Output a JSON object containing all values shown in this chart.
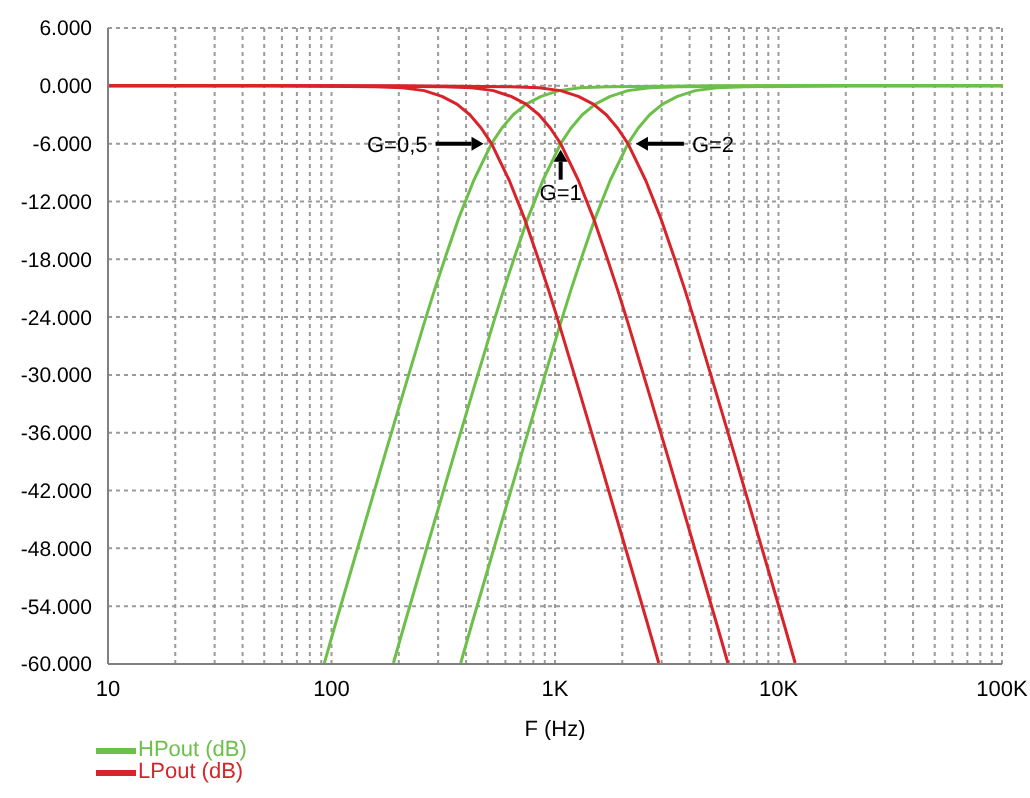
{
  "chart_data": {
    "type": "line",
    "xlabel": "F (Hz)",
    "log": "x",
    "grid": true,
    "legend": "bottom left",
    "xlim": [
      10,
      100000
    ],
    "xticks": [
      10,
      {
        "value": 20,
        "label": null
      },
      {
        "value": 30,
        "label": null
      },
      {
        "value": 40,
        "label": null
      },
      {
        "value": 50,
        "label": null
      },
      {
        "value": 60,
        "label": null
      },
      {
        "value": 70,
        "label": null
      },
      {
        "value": 80,
        "label": null
      },
      {
        "value": 90,
        "label": null
      },
      100,
      {
        "value": 200,
        "label": null
      },
      {
        "value": 300,
        "label": null
      },
      {
        "value": 400,
        "label": null
      },
      {
        "value": 500,
        "label": null
      },
      {
        "value": 600,
        "label": null
      },
      {
        "value": 700,
        "label": null
      },
      {
        "value": 800,
        "label": null
      },
      {
        "value": 900,
        "label": null
      },
      {
        "value": 1000,
        "label": "1K"
      },
      {
        "value": 2000,
        "label": null
      },
      {
        "value": 3000,
        "label": null
      },
      {
        "value": 4000,
        "label": null
      },
      {
        "value": 5000,
        "label": null
      },
      {
        "value": 6000,
        "label": null
      },
      {
        "value": 7000,
        "label": null
      },
      {
        "value": 8000,
        "label": null
      },
      {
        "value": 9000,
        "label": null
      },
      {
        "value": 10000,
        "label": "10K"
      },
      {
        "value": 20000,
        "label": null
      },
      {
        "value": 30000,
        "label": null
      },
      {
        "value": 40000,
        "label": null
      },
      {
        "value": 50000,
        "label": null
      },
      {
        "value": 60000,
        "label": null
      },
      {
        "value": 70000,
        "label": null
      },
      {
        "value": 80000,
        "label": null
      },
      {
        "value": 90000,
        "label": null
      },
      {
        "value": 100000,
        "label": "100K"
      }
    ],
    "ylim": [
      -60,
      6
    ],
    "yticks": [
      {
        "value": 6,
        "label": "6.000"
      },
      {
        "value": 0,
        "label": "0.000"
      },
      {
        "value": -6,
        "label": "-6.000"
      },
      {
        "value": -12,
        "label": "-12.000"
      },
      {
        "value": -18,
        "label": "-18.000"
      },
      {
        "value": -24,
        "label": "-24.000"
      },
      {
        "value": -30,
        "label": "-30.000"
      },
      {
        "value": -36,
        "label": "-36.000"
      },
      {
        "value": -42,
        "label": "-42.000"
      },
      {
        "value": -48,
        "label": "-48.000"
      },
      {
        "value": -54,
        "label": "-54.000"
      },
      {
        "value": -60,
        "label": "-60.000"
      }
    ],
    "series": [
      {
        "name": "HPout (dB)",
        "color": "#6cc04a",
        "x": [
          92.9,
          104,
          130,
          173.3,
          208,
          260,
          288.9,
          325,
          371.4,
          433.3,
          520,
          577.8,
          650,
          742.9,
          866.7,
          1040,
          1300,
          1733,
          5200,
          100000
        ],
        "values": [
          -59.9,
          -55.9,
          -48.2,
          -38.3,
          -32.1,
          -24.6,
          -21.2,
          -17.6,
          -13.7,
          -9.8,
          -6,
          -4.4,
          -3,
          -1.9,
          -1.1,
          -0.5,
          -0.2,
          -0.1,
          0,
          0
        ]
      },
      {
        "color": "#6cc04a",
        "x": [
          189.3,
          212,
          265,
          353.3,
          424,
          530,
          588.9,
          662.5,
          757.1,
          883.3,
          1060,
          1177.8,
          1325,
          1514.3,
          1766.7,
          2120,
          2650,
          3533,
          10600,
          100000
        ],
        "values": [
          -59.9,
          -55.9,
          -48.2,
          -38.3,
          -32.1,
          -24.6,
          -21.2,
          -17.6,
          -13.7,
          -9.8,
          -6,
          -4.4,
          -3,
          -1.9,
          -1.1,
          -0.5,
          -0.2,
          -0.1,
          0,
          0
        ]
      },
      {
        "color": "#6cc04a",
        "x": [
          378.6,
          424,
          530,
          706.7,
          848,
          1060,
          1177.8,
          1325,
          1514.3,
          1766.7,
          2120,
          2355.6,
          2650,
          3028.6,
          3533.3,
          4240,
          5300,
          7067,
          21200,
          100000
        ],
        "values": [
          -59.9,
          -55.9,
          -48.2,
          -38.3,
          -32.1,
          -24.6,
          -21.2,
          -17.6,
          -13.7,
          -9.8,
          -6,
          -4.4,
          -3,
          -1.9,
          -1.1,
          -0.5,
          -0.2,
          -0.1,
          0,
          0
        ]
      },
      {
        "name": "LPout (dB)",
        "color": "#d8232a",
        "x": [
          10,
          52,
          156,
          208,
          260,
          312,
          364,
          416,
          468,
          520,
          624,
          728,
          832,
          936,
          1040,
          1300,
          1560,
          2080,
          2600,
          2912
        ],
        "values": [
          0,
          0,
          -0.1,
          -0.2,
          -0.5,
          -1.1,
          -1.9,
          -3,
          -4.4,
          -6,
          -9.8,
          -13.7,
          -17.6,
          -21.2,
          -24.6,
          -32.1,
          -38.3,
          -48.2,
          -55.9,
          -59.9
        ]
      },
      {
        "color": "#d8232a",
        "x": [
          10,
          106,
          318,
          424,
          530,
          636,
          742,
          848,
          954,
          1060,
          1272,
          1484,
          1696,
          1908,
          2120,
          2650,
          3180,
          4240,
          5300,
          5936
        ],
        "values": [
          0,
          0,
          -0.1,
          -0.2,
          -0.5,
          -1.1,
          -1.9,
          -3,
          -4.4,
          -6,
          -9.8,
          -13.7,
          -17.6,
          -21.2,
          -24.6,
          -32.1,
          -38.3,
          -48.2,
          -55.9,
          -59.9
        ]
      },
      {
        "color": "#d8232a",
        "x": [
          10,
          212,
          636,
          848,
          1060,
          1272,
          1484,
          1696,
          1908,
          2120,
          2544,
          2968,
          3392,
          3816,
          4240,
          5300,
          6360,
          8480,
          10600,
          11872
        ],
        "values": [
          0,
          0,
          -0.1,
          -0.2,
          -0.5,
          -1.1,
          -1.9,
          -3,
          -4.4,
          -6,
          -9.8,
          -13.7,
          -17.6,
          -21.2,
          -24.6,
          -32.1,
          -38.3,
          -48.2,
          -55.9,
          -59.9
        ]
      }
    ],
    "annotations": [
      {
        "text": "G=0,5",
        "x": 520,
        "y": -6
      },
      {
        "text": "G=1",
        "x": 1060,
        "y": -6
      },
      {
        "text": "G=2",
        "x": 2120,
        "y": -6
      }
    ]
  }
}
